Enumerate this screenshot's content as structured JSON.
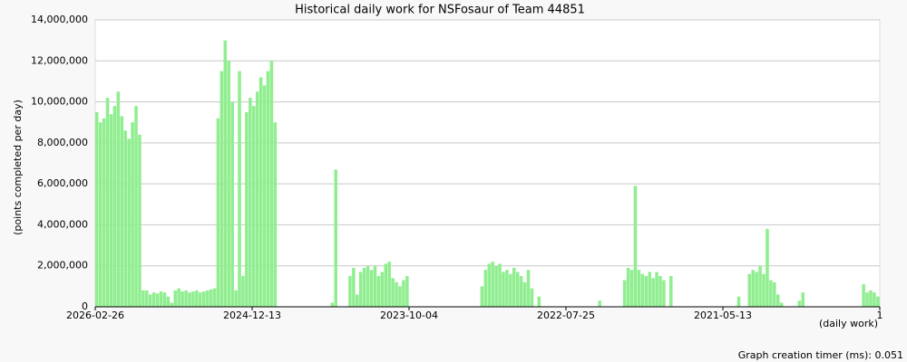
{
  "chart_data": {
    "type": "bar",
    "title": "Historical daily work for NSFosaur of Team 44851",
    "y_label": "(points completed per day)",
    "x_label": "(daily work)",
    "footer": "Graph creation timer (ms): 0.051",
    "color": "#90ee90",
    "grid": true,
    "xlim": [
      0,
      2200
    ],
    "xticks": [
      {
        "value": 0,
        "label": "2026-02-26"
      },
      {
        "value": 440,
        "label": "2024-12-13"
      },
      {
        "value": 880,
        "label": "2023-10-04"
      },
      {
        "value": 1320,
        "label": "2022-07-25"
      },
      {
        "value": 1760,
        "label": "2021-05-13"
      },
      {
        "value": 2200,
        "label": "1"
      }
    ],
    "ylim": [
      0,
      14000000
    ],
    "yticks": [
      0,
      {
        "value": 2000000,
        "label": "2,000,000"
      },
      {
        "value": 4000000,
        "label": "4,000,000"
      },
      {
        "value": 6000000,
        "label": "6,000,000"
      },
      {
        "value": 8000000,
        "label": "8,000,000"
      },
      {
        "value": 10000000,
        "label": "10,000,000"
      },
      {
        "value": 12000000,
        "label": "12,000,000"
      },
      {
        "value": 14000000,
        "label": "14,000,000"
      }
    ],
    "x": [
      0,
      10,
      20,
      30,
      40,
      50,
      60,
      70,
      80,
      90,
      100,
      110,
      120,
      130,
      140,
      150,
      160,
      170,
      180,
      190,
      200,
      210,
      220,
      230,
      240,
      250,
      260,
      270,
      280,
      290,
      300,
      310,
      320,
      330,
      340,
      350,
      360,
      370,
      380,
      390,
      400,
      410,
      420,
      430,
      440,
      450,
      460,
      470,
      480,
      490,
      500,
      510,
      520,
      530,
      540,
      550,
      560,
      570,
      580,
      590,
      600,
      610,
      620,
      630,
      640,
      650,
      660,
      670,
      680,
      690,
      700,
      710,
      720,
      730,
      740,
      750,
      760,
      770,
      780,
      790,
      800,
      810,
      820,
      830,
      840,
      850,
      860,
      870,
      880,
      890,
      900,
      910,
      920,
      930,
      940,
      950,
      960,
      970,
      980,
      990,
      1000,
      1010,
      1020,
      1030,
      1040,
      1050,
      1060,
      1070,
      1080,
      1090,
      1100,
      1110,
      1120,
      1130,
      1140,
      1150,
      1160,
      1170,
      1180,
      1190,
      1200,
      1210,
      1220,
      1230,
      1240,
      1250,
      1260,
      1270,
      1280,
      1290,
      1300,
      1310,
      1320,
      1330,
      1340,
      1350,
      1360,
      1370,
      1380,
      1390,
      1400,
      1410,
      1420,
      1430,
      1440,
      1450,
      1460,
      1470,
      1480,
      1490,
      1500,
      1510,
      1520,
      1530,
      1540,
      1550,
      1560,
      1570,
      1580,
      1590,
      1600,
      1610,
      1620,
      1630,
      1640,
      1650,
      1660,
      1670,
      1680,
      1690,
      1700,
      1710,
      1720,
      1730,
      1740,
      1750,
      1760,
      1770,
      1780,
      1790,
      1800,
      1810,
      1820,
      1830,
      1840,
      1850,
      1860,
      1870,
      1880,
      1890,
      1900,
      1910,
      1920,
      1930,
      1940,
      1950,
      1960,
      1970,
      1980,
      1990,
      2000,
      2010,
      2020,
      2030,
      2040,
      2050,
      2060,
      2070,
      2080,
      2090,
      2100,
      2110,
      2120,
      2130,
      2140,
      2150,
      2160,
      2170,
      2180,
      2190
    ],
    "values": [
      9500000,
      9000000,
      9200000,
      10200000,
      9400000,
      9800000,
      10500000,
      9300000,
      8600000,
      8200000,
      9000000,
      9800000,
      8400000,
      800000,
      800000,
      600000,
      700000,
      650000,
      750000,
      700000,
      500000,
      200000,
      800000,
      900000,
      750000,
      800000,
      700000,
      750000,
      800000,
      700000,
      750000,
      800000,
      850000,
      900000,
      9200000,
      11500000,
      13000000,
      12000000,
      10000000,
      800000,
      11500000,
      1500000,
      9500000,
      10200000,
      9800000,
      10500000,
      11200000,
      10800000,
      11500000,
      12000000,
      9000000,
      0,
      0,
      0,
      0,
      0,
      0,
      0,
      0,
      0,
      0,
      0,
      0,
      0,
      0,
      0,
      200000,
      6700000,
      0,
      0,
      0,
      1500000,
      1900000,
      600000,
      1700000,
      1900000,
      2000000,
      1800000,
      2000000,
      1500000,
      1700000,
      2100000,
      2200000,
      1400000,
      1200000,
      1000000,
      1300000,
      1500000,
      0,
      0,
      0,
      0,
      0,
      0,
      0,
      0,
      0,
      0,
      0,
      0,
      0,
      0,
      0,
      0,
      0,
      0,
      0,
      0,
      1000000,
      1800000,
      2100000,
      2200000,
      2000000,
      2100000,
      1700000,
      1800000,
      1600000,
      1900000,
      1700000,
      1500000,
      1200000,
      1800000,
      900000,
      0,
      500000,
      0,
      0,
      0,
      0,
      0,
      0,
      0,
      0,
      0,
      0,
      0,
      0,
      0,
      0,
      0,
      0,
      300000,
      0,
      0,
      0,
      0,
      0,
      0,
      1300000,
      1900000,
      1800000,
      5900000,
      1800000,
      1600000,
      1500000,
      1700000,
      1400000,
      1700000,
      1500000,
      1300000,
      0,
      1500000,
      0,
      0,
      0,
      0,
      0,
      0,
      0,
      0,
      0,
      0,
      0,
      0,
      0,
      0,
      0,
      0,
      0,
      0,
      500000,
      0,
      0,
      1600000,
      1800000,
      1700000,
      2000000,
      1600000,
      3800000,
      1300000,
      1200000,
      600000,
      200000,
      0,
      0,
      0,
      0,
      300000,
      700000,
      0,
      0,
      0,
      0,
      0,
      0,
      0,
      0,
      0,
      0,
      0,
      0,
      0,
      0,
      0,
      0,
      1100000,
      700000,
      800000,
      700000,
      500000
    ]
  }
}
